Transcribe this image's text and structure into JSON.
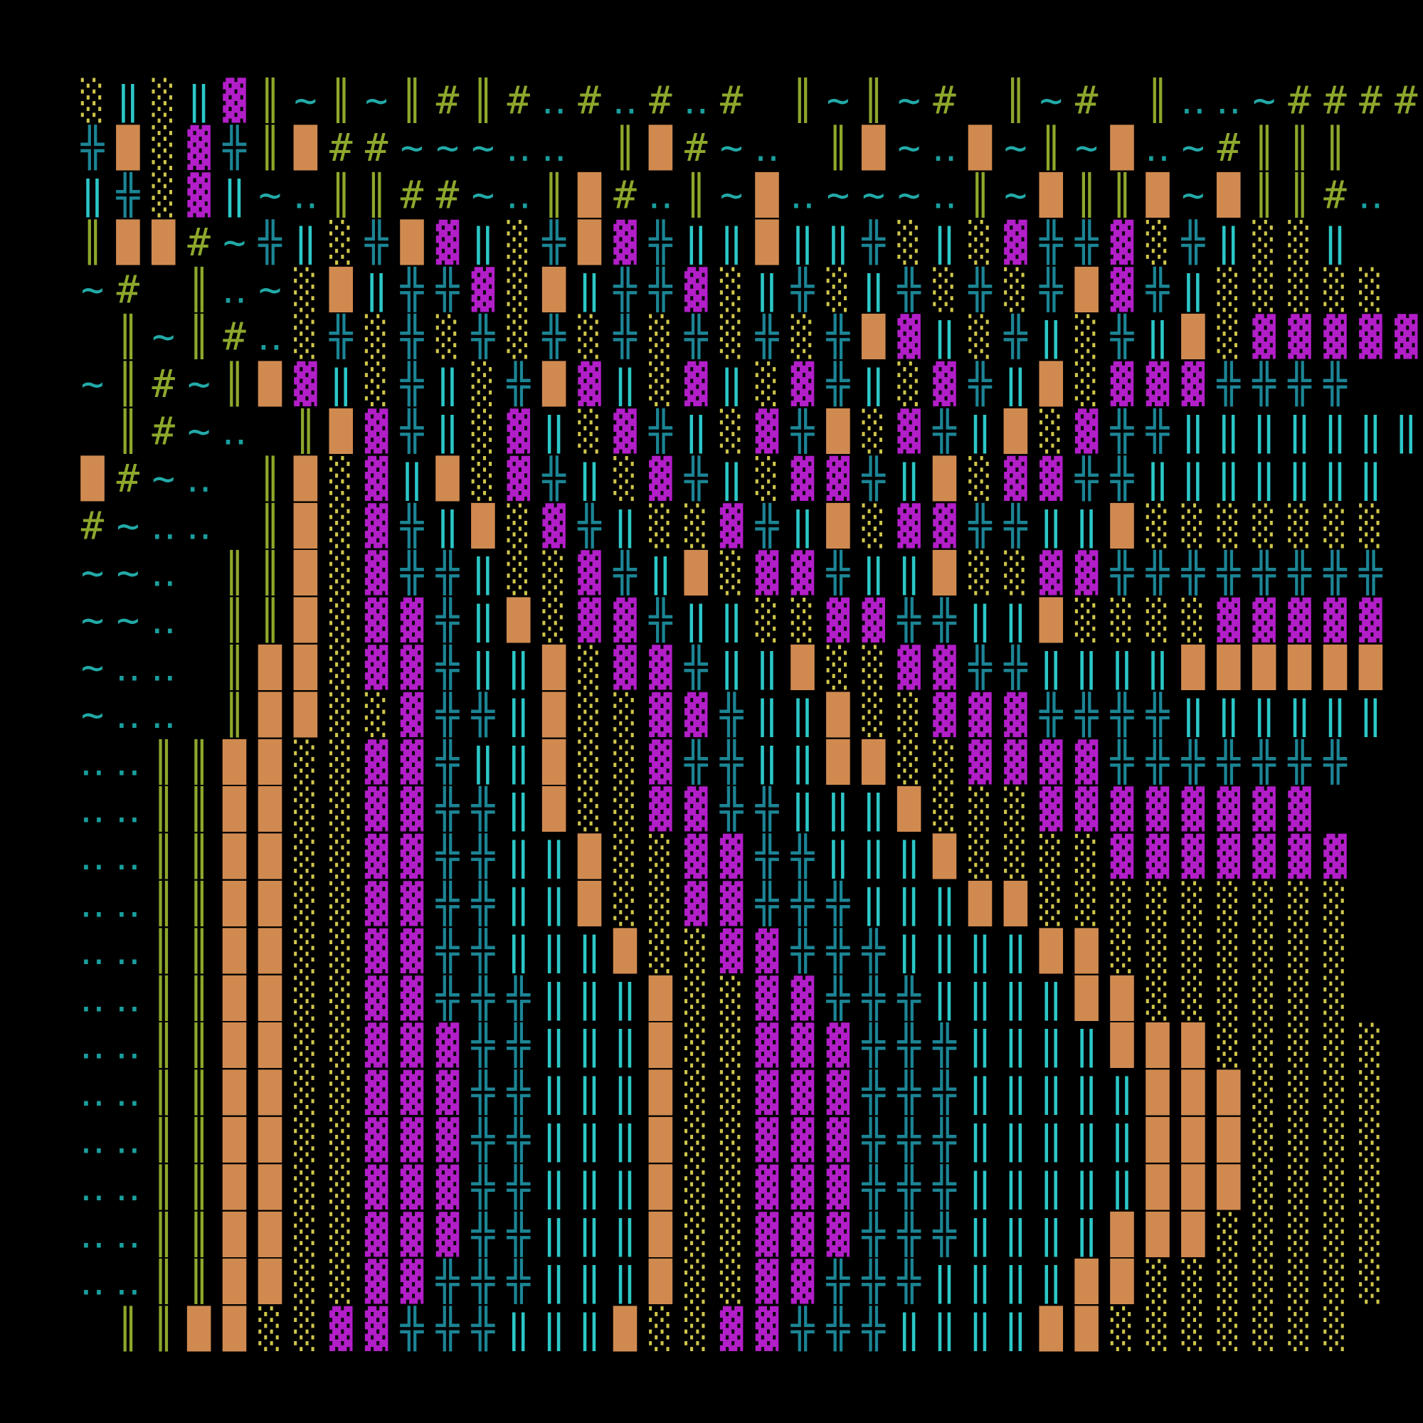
{
  "grid": {
    "rows": [
      "░‖░‖▓║~║~║#║#‥#‥#‥# ║~║~# ║~# ║‥‥~#####",
      "╬█░▓╬║█##~~~‥‥ ║█#~‥ ║█~‥█~║~█‥~#║║║",
      "‖╬░▓‖~‥║║##~‥║█#‥║~█‥~~~‥║~█║║█~█║║#‥",
      "║██#~╬‖░╬█▓‖░╬█▓╬‖‖█‖‖╬░‖░▓╬╬▓░╬‖░░‖",
      "~# ║‥~░█‖╬╬▓░█‖╬╬▓░‖╬░‖╬░╬░╬█▓╬‖░░░░░",
      " ║~║#‥░╬░╬░╬░╬░╬░╬░╬░╬█▓‖░╬‖░╬‖█░▓▓▓▓▓",
      "~║#~║█▓‖░╬‖░╬█▓‖░▓‖░▓╬‖░▓╬‖█░▓▓▓╬╬╬╬",
      " ║#~‥ ║█▓╬‖░▓‖░▓╬‖░▓╬█░▓╬‖█░▓╬╬‖‖‖‖‖‖‖",
      "█#~‥ ║█░▓‖█░▓╬‖░▓╬‖░▓▓╬‖█░▓▓╬╬‖‖‖‖‖‖‖",
      "#~‥‥ ║█░▓╬‖█░▓╬‖░░▓╬‖█░▓▓╬╬‖‖█░░░░░░░",
      "~~‥ ║║█░▓╬╬‖░░▓╬‖█░▓▓╬‖‖█░░▓▓╬╬╬╬╬╬╬╬",
      "~~‥ ║║█░▓▓╬‖█░▓▓╬‖‖░░▓▓╬╬‖‖█░░░░▓▓▓▓▓",
      "~‥‥ ║██░▓▓╬‖‖█░▓▓╬‖‖█░░▓▓╬╬‖‖‖‖██████",
      "~‥‥ ║██░░▓╬╬‖█░░▓▓╬‖‖█░░▓▓▓╬╬╬╬‖‖‖‖‖‖",
      "‥‥║║██░░▓▓╬‖‖█░░▓╬╬‖‖██░░▓▓▓▓╬╬╬╬╬╬╬",
      "‥‥║║██░░▓▓╬╬‖█░░▓▓╬╬‖‖‖█░░░▓▓▓▓▓▓▓▓",
      "‥‥║║██░░▓▓╬╬‖‖█░░▓▓╬╬‖‖‖█░░░░▓▓▓▓▓▓▓",
      "‥‥║║██░░▓▓╬╬‖‖█░░▓▓╬╬╬‖‖‖██░░░░░░░░░",
      "‥‥║║██░░▓▓╬╬‖‖‖█░░▓▓╬╬╬‖‖‖‖██░░░░░░░",
      "‥‥║║██░░▓▓╬╬╬‖‖‖█░░▓▓╬╬╬‖‖‖‖██░░░░░░",
      "‥‥║║██░░▓▓▓╬╬‖‖‖█░░▓▓▓╬╬╬‖‖‖‖███░░░░░",
      "‥‥║║██░░▓▓▓╬╬‖‖‖█░░▓▓▓╬╬╬‖‖‖‖‖███░░░░",
      "‥‥║║██░░▓▓▓╬╬‖‖‖█░░▓▓▓╬╬╬‖‖‖‖‖███░░░░",
      "‥‥║║██░░▓▓▓╬╬‖‖‖█░░▓▓▓╬╬╬‖‖‖‖‖███░░░░",
      "‥‥║║██░░▓▓▓╬╬‖‖‖█░░▓▓▓╬╬╬‖‖‖‖███░░░░░",
      "‥‥║║██░░▓▓╬╬╬‖‖‖█░░▓▓╬╬╬‖‖‖‖██░░░░░░░",
      " ║║██░░▓▓╬╬╬‖‖‖█░░▓▓╬╬╬‖‖‖‖██░░░░░░░"
    ]
  }
}
